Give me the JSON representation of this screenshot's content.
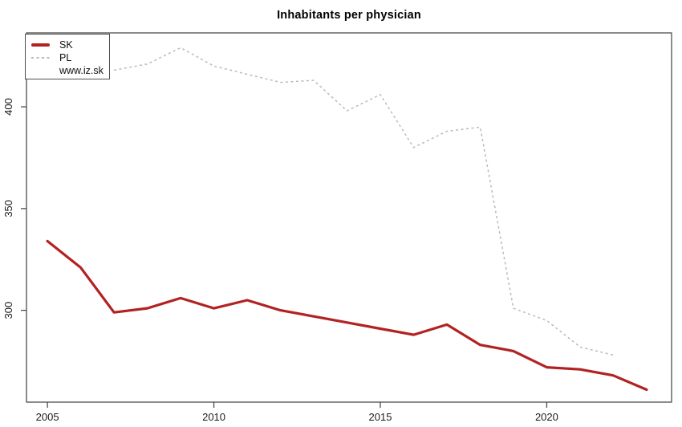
{
  "title": "Inhabitants per physician",
  "watermark": "www.iz.sk",
  "colors": {
    "sk_line": "#b22222",
    "pl_line": "#b9b9c0",
    "axis_border": "#4d4d4d",
    "tick_text": "#1a1a1a",
    "background": "#ffffff"
  },
  "chart_data": {
    "type": "line",
    "title": "Inhabitants per physician",
    "xlabel": "",
    "ylabel": "",
    "x": [
      2005,
      2006,
      2007,
      2008,
      2009,
      2010,
      2011,
      2012,
      2013,
      2014,
      2015,
      2016,
      2017,
      2018,
      2019,
      2020,
      2021,
      2022,
      2023
    ],
    "series": [
      {
        "name": "SK",
        "color": "#b22222",
        "line_style": "solid",
        "line_width": 3.2,
        "values": [
          334,
          321,
          299,
          301,
          306,
          301,
          305,
          300,
          297,
          294,
          291,
          288,
          293,
          283,
          280,
          272,
          271,
          268,
          261
        ]
      },
      {
        "name": "PL",
        "color": "#b9b9c0",
        "line_style": "dotted",
        "line_width": 1.5,
        "values": [
          null,
          null,
          418,
          421,
          429,
          420,
          416,
          412,
          413,
          398,
          406,
          380,
          388,
          390,
          301,
          295,
          282,
          278,
          null
        ],
        "note": "2005-2006 values hidden behind legend box"
      }
    ],
    "xticks": [
      2005,
      2010,
      2015,
      2020
    ],
    "yticks": [
      300,
      350,
      400
    ],
    "xlim": [
      2004.37,
      2023.75
    ],
    "ylim": [
      254.9,
      436.3
    ],
    "grid": false,
    "legend_position": "top-left",
    "legend_entries": [
      "SK",
      "PL",
      "www.iz.sk"
    ]
  }
}
